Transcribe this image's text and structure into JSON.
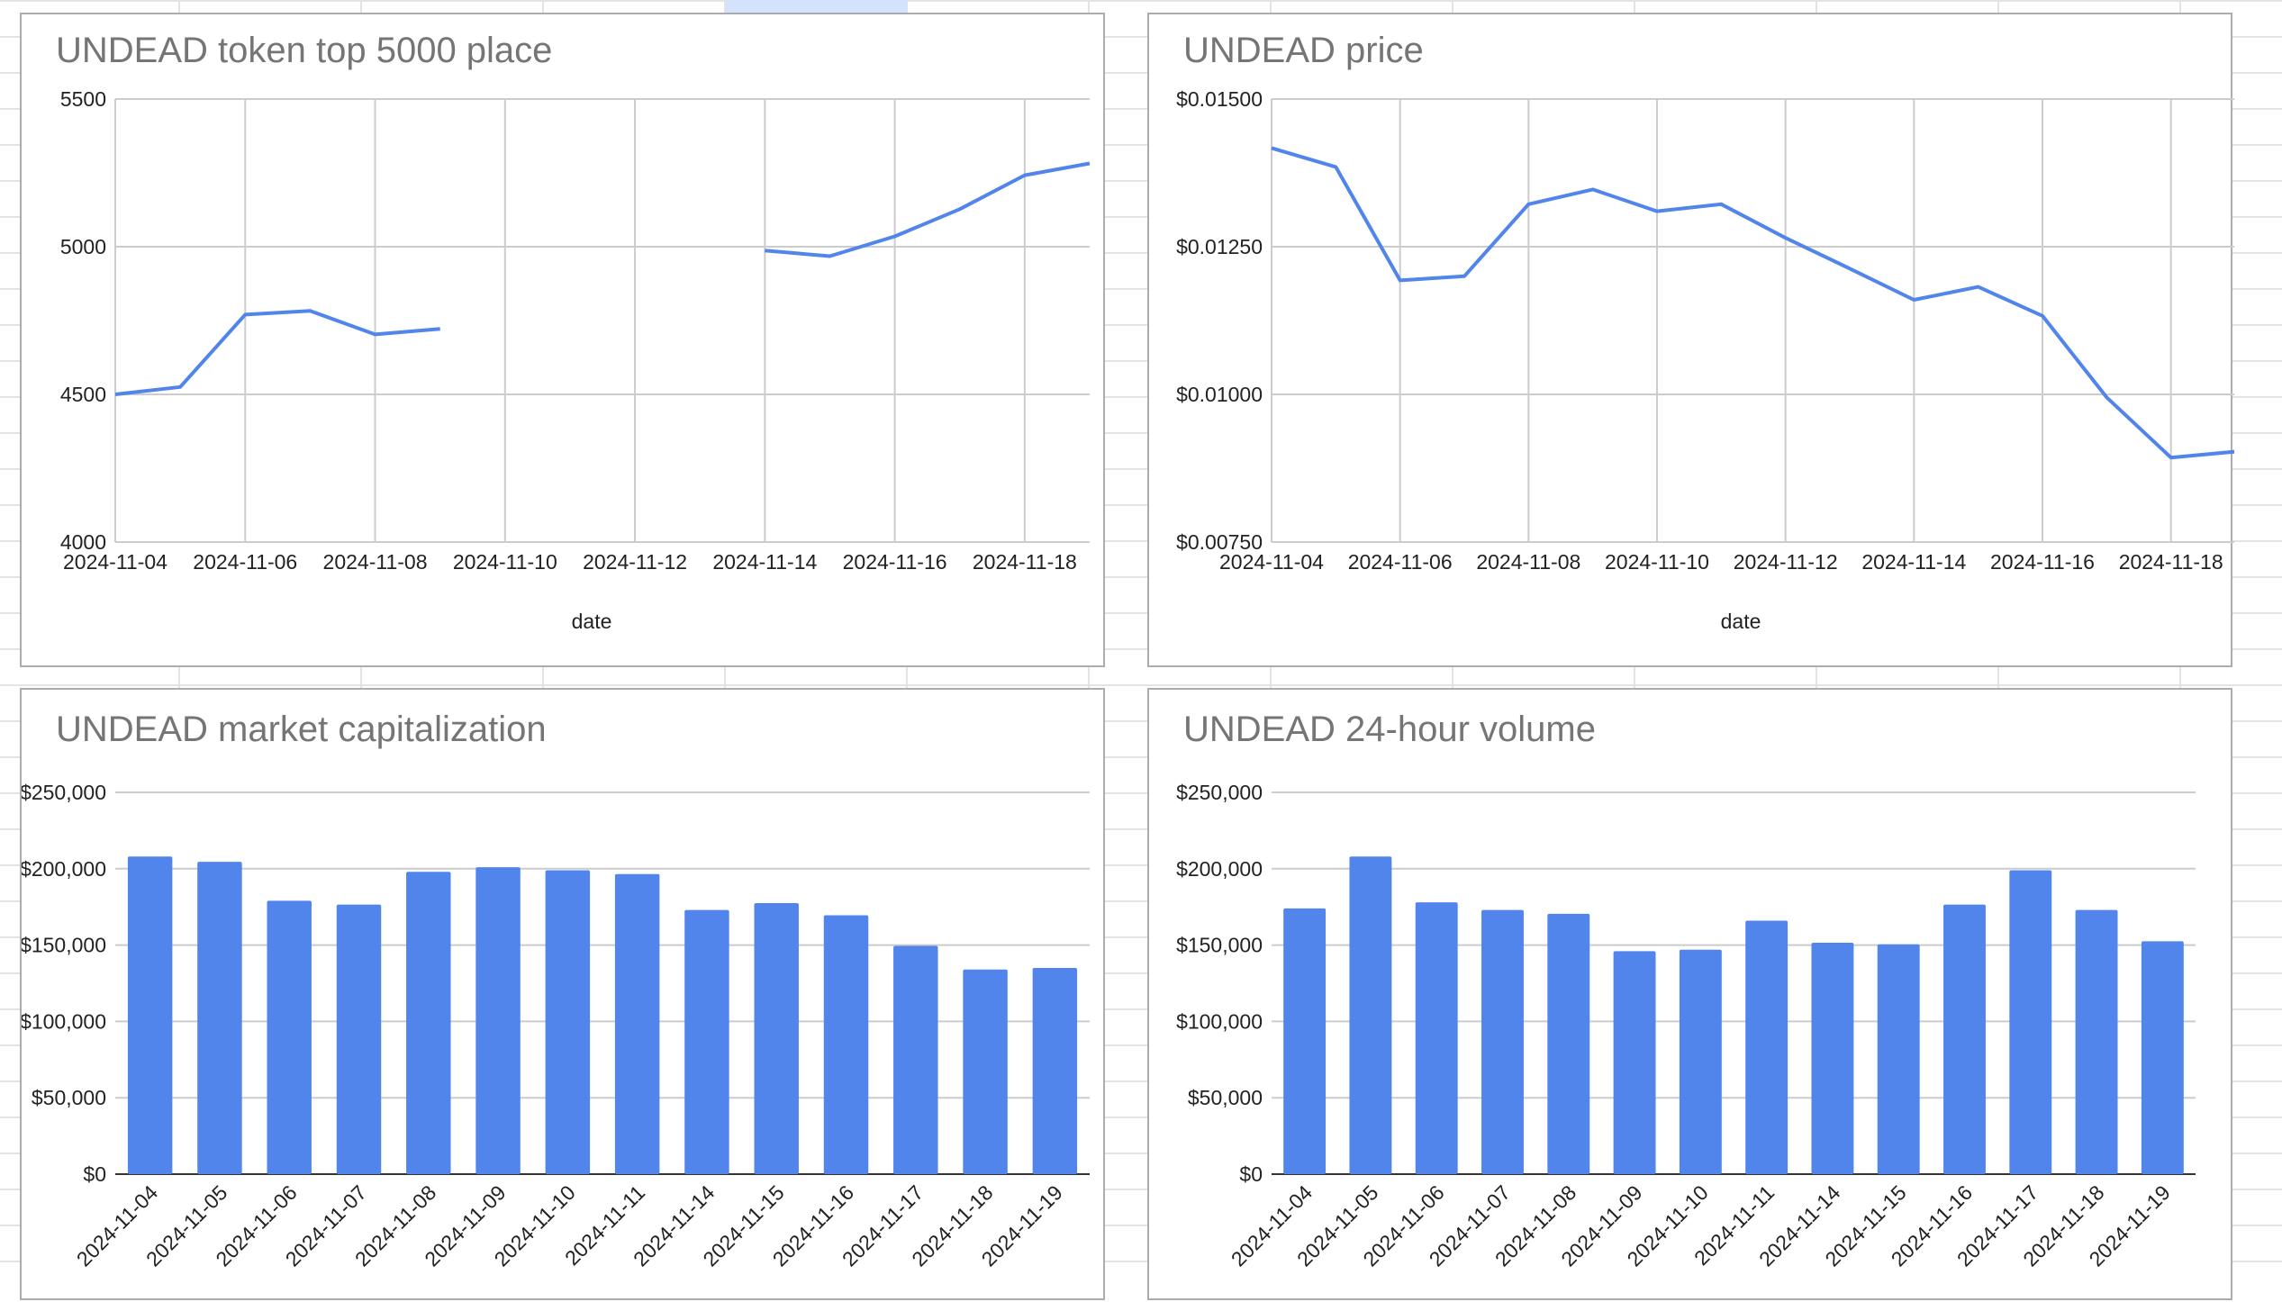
{
  "colors": {
    "series": "#5185ec",
    "grid": "#cccccc",
    "axis": "#333333",
    "title": "#757575"
  },
  "chart_data": [
    {
      "type": "line",
      "title": "UNDEAD token top 5000 place",
      "xlabel": "date",
      "ylabel": "",
      "x_start": "2024-11-04",
      "x": [
        "2024-11-04",
        "2024-11-05",
        "2024-11-06",
        "2024-11-07",
        "2024-11-08",
        "2024-11-09",
        "2024-11-10",
        "2024-11-11",
        "2024-11-12",
        "2024-11-13",
        "2024-11-14",
        "2024-11-15",
        "2024-11-16",
        "2024-11-17",
        "2024-11-18",
        "2024-11-19"
      ],
      "series": [
        {
          "name": "",
          "values": [
            4500,
            4525,
            4770,
            4783,
            4703,
            4722,
            null,
            null,
            null,
            null,
            4987,
            4968,
            5035,
            5127,
            5242,
            5282
          ]
        }
      ],
      "xticks": [
        "2024-11-04",
        "2024-11-06",
        "2024-11-08",
        "2024-11-10",
        "2024-11-12",
        "2024-11-14",
        "2024-11-16",
        "2024-11-18"
      ],
      "yticks": [
        "4000",
        "4500",
        "5000",
        "5500"
      ],
      "ylim": [
        4000,
        5500
      ],
      "grid": true,
      "legend": "none"
    },
    {
      "type": "line",
      "title": "UNDEAD price",
      "xlabel": "date",
      "ylabel": "",
      "x": [
        "2024-11-04",
        "2024-11-05",
        "2024-11-06",
        "2024-11-07",
        "2024-11-08",
        "2024-11-09",
        "2024-11-10",
        "2024-11-11",
        "2024-11-12",
        "2024-11-13",
        "2024-11-14",
        "2024-11-15",
        "2024-11-16",
        "2024-11-17",
        "2024-11-18",
        "2024-11-19"
      ],
      "series": [
        {
          "name": "",
          "values": [
            0.01417,
            0.01385,
            0.01193,
            0.012,
            0.01322,
            0.01347,
            0.0131,
            0.01322,
            0.01265,
            0.01213,
            0.0116,
            0.01182,
            0.01133,
            0.00995,
            0.00893,
            0.00903
          ]
        }
      ],
      "xticks": [
        "2024-11-04",
        "2024-11-06",
        "2024-11-08",
        "2024-11-10",
        "2024-11-12",
        "2024-11-14",
        "2024-11-16",
        "2024-11-18"
      ],
      "yticks": [
        "$0.00750",
        "$0.01000",
        "$0.01250",
        "$0.01500"
      ],
      "ylim": [
        0.0075,
        0.015
      ],
      "grid": true,
      "legend": "none"
    },
    {
      "type": "bar",
      "title": "UNDEAD market capitalization",
      "xlabel": "",
      "ylabel": "",
      "categories": [
        "2024-11-04",
        "2024-11-05",
        "2024-11-06",
        "2024-11-07",
        "2024-11-08",
        "2024-11-09",
        "2024-11-10",
        "2024-11-11",
        "2024-11-14",
        "2024-11-15",
        "2024-11-16",
        "2024-11-17",
        "2024-11-18",
        "2024-11-19"
      ],
      "values": [
        208000,
        204500,
        179000,
        176500,
        198000,
        201000,
        199000,
        196500,
        173000,
        177500,
        169500,
        149500,
        134000,
        135000
      ],
      "yticks": [
        "$0",
        "$50,000",
        "$100,000",
        "$150,000",
        "$200,000",
        "$250,000"
      ],
      "ylim": [
        0,
        250000
      ],
      "grid": true,
      "legend": "none"
    },
    {
      "type": "bar",
      "title": "UNDEAD 24-hour volume",
      "xlabel": "",
      "ylabel": "",
      "categories": [
        "2024-11-04",
        "2024-11-05",
        "2024-11-06",
        "2024-11-07",
        "2024-11-08",
        "2024-11-09",
        "2024-11-10",
        "2024-11-11",
        "2024-11-14",
        "2024-11-15",
        "2024-11-16",
        "2024-11-17",
        "2024-11-18",
        "2024-11-19"
      ],
      "values": [
        174000,
        208000,
        178000,
        173000,
        170500,
        146000,
        147000,
        166000,
        151500,
        150500,
        176500,
        199000,
        173000,
        152500
      ],
      "yticks": [
        "$0",
        "$50,000",
        "$100,000",
        "$150,000",
        "$200,000",
        "$250,000"
      ],
      "ylim": [
        0,
        250000
      ],
      "grid": true,
      "legend": "none"
    }
  ]
}
